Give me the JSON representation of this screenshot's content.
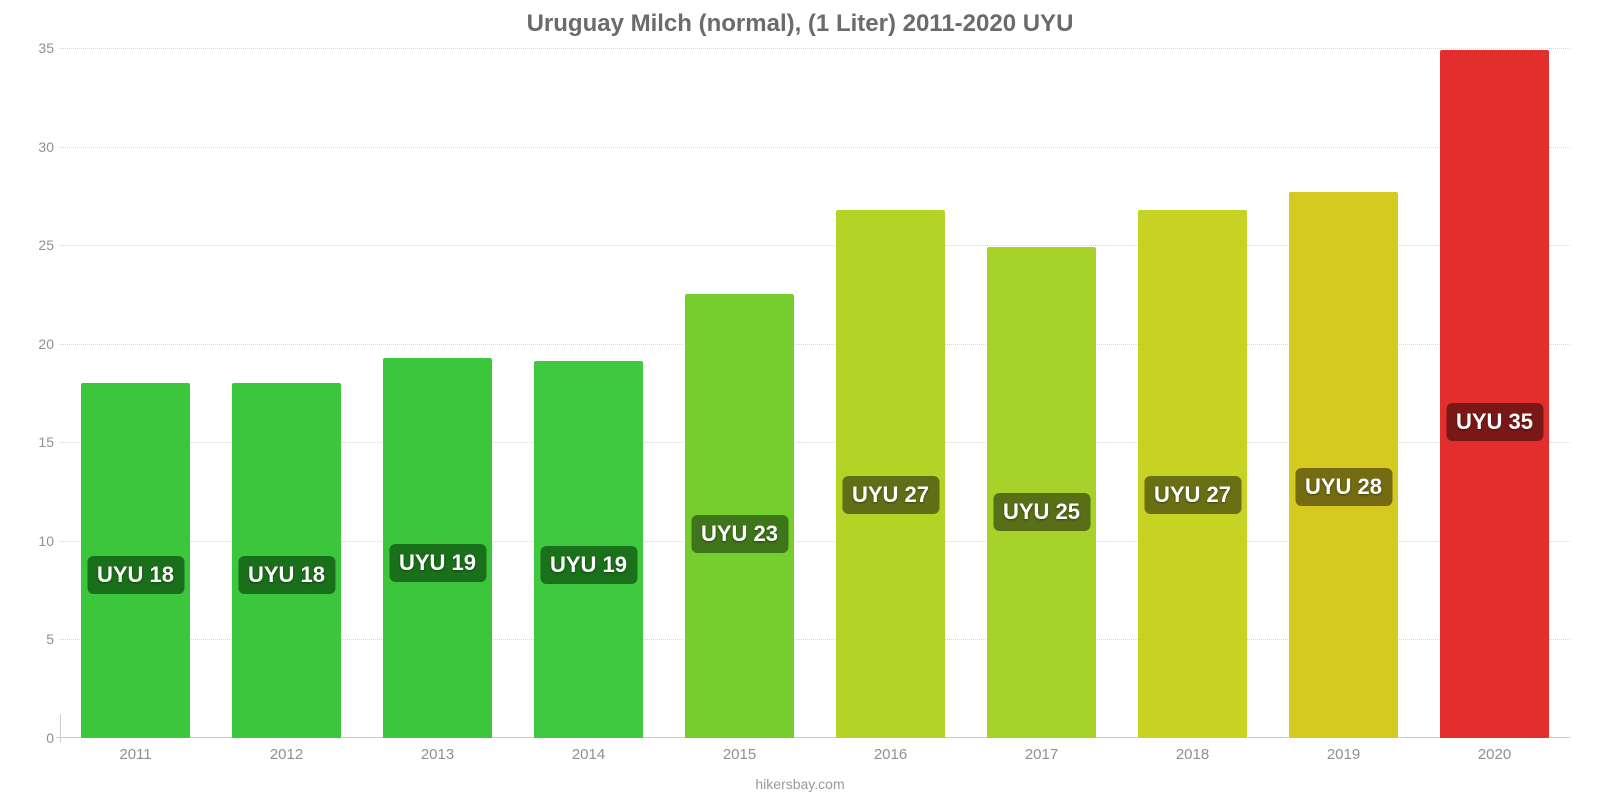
{
  "chart": {
    "type": "bar",
    "title": "Uruguay Milch (normal), (1 Liter) 2011-2020 UYU",
    "title_fontsize": 24,
    "title_color": "#6b6b6b",
    "footer": "hikersbay.com",
    "footer_color": "#9a9a9a",
    "background_color": "#ffffff",
    "grid_color": "#d7d7d7",
    "axis_line_color": "#cccccc",
    "tick_label_color": "#909090",
    "tick_label_fontsize": 14,
    "x_tick_fontsize": 15,
    "bar_width_pct": 72,
    "bar_label_fontsize": 22,
    "bar_label_vpos_pct": 54,
    "ylim": [
      0,
      35
    ],
    "yticks": [
      0,
      5,
      10,
      15,
      20,
      25,
      30,
      35
    ],
    "categories": [
      "2011",
      "2012",
      "2013",
      "2014",
      "2015",
      "2016",
      "2017",
      "2018",
      "2019",
      "2020"
    ],
    "values": [
      18.0,
      18.0,
      19.3,
      19.1,
      22.5,
      26.8,
      24.9,
      26.8,
      27.7,
      34.9
    ],
    "value_labels": [
      "UYU 18",
      "UYU 18",
      "UYU 19",
      "UYU 19",
      "UYU 23",
      "UYU 27",
      "UYU 25",
      "UYU 27",
      "UYU 28",
      "UYU 35"
    ],
    "bar_colors": [
      "#3cc63c",
      "#3cc63c",
      "#3cc63c",
      "#3ec93e",
      "#74cf2e",
      "#b4d327",
      "#a6d22a",
      "#c6d224",
      "#d6c91f",
      "#e32e2e"
    ],
    "bar_label_bg": [
      "#1a6f1a",
      "#1a6f1a",
      "#1a6f1a",
      "#1b711b",
      "#3e751a",
      "#606f15",
      "#576f17",
      "#6a6f14",
      "#746b12",
      "#7a1818"
    ]
  }
}
